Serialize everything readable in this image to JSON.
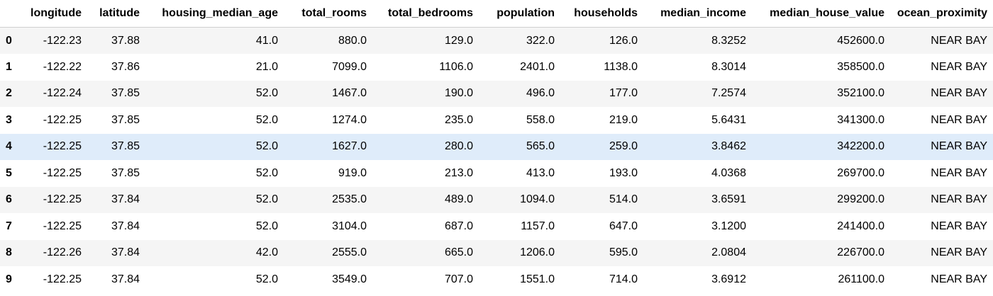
{
  "table": {
    "columns": [
      "",
      "longitude",
      "latitude",
      "housing_median_age",
      "total_rooms",
      "total_bedrooms",
      "population",
      "households",
      "median_income",
      "median_house_value",
      "ocean_proximity"
    ],
    "rows": [
      {
        "index": "0",
        "cells": [
          "-122.23",
          "37.88",
          "41.0",
          "880.0",
          "129.0",
          "322.0",
          "126.0",
          "8.3252",
          "452600.0",
          "NEAR BAY"
        ]
      },
      {
        "index": "1",
        "cells": [
          "-122.22",
          "37.86",
          "21.0",
          "7099.0",
          "1106.0",
          "2401.0",
          "1138.0",
          "8.3014",
          "358500.0",
          "NEAR BAY"
        ]
      },
      {
        "index": "2",
        "cells": [
          "-122.24",
          "37.85",
          "52.0",
          "1467.0",
          "190.0",
          "496.0",
          "177.0",
          "7.2574",
          "352100.0",
          "NEAR BAY"
        ]
      },
      {
        "index": "3",
        "cells": [
          "-122.25",
          "37.85",
          "52.0",
          "1274.0",
          "235.0",
          "558.0",
          "219.0",
          "5.6431",
          "341300.0",
          "NEAR BAY"
        ]
      },
      {
        "index": "4",
        "cells": [
          "-122.25",
          "37.85",
          "52.0",
          "1627.0",
          "280.0",
          "565.0",
          "259.0",
          "3.8462",
          "342200.0",
          "NEAR BAY"
        ]
      },
      {
        "index": "5",
        "cells": [
          "-122.25",
          "37.85",
          "52.0",
          "919.0",
          "213.0",
          "413.0",
          "193.0",
          "4.0368",
          "269700.0",
          "NEAR BAY"
        ]
      },
      {
        "index": "6",
        "cells": [
          "-122.25",
          "37.84",
          "52.0",
          "2535.0",
          "489.0",
          "1094.0",
          "514.0",
          "3.6591",
          "299200.0",
          "NEAR BAY"
        ]
      },
      {
        "index": "7",
        "cells": [
          "-122.25",
          "37.84",
          "52.0",
          "3104.0",
          "687.0",
          "1157.0",
          "647.0",
          "3.1200",
          "241400.0",
          "NEAR BAY"
        ]
      },
      {
        "index": "8",
        "cells": [
          "-122.26",
          "37.84",
          "42.0",
          "2555.0",
          "665.0",
          "1206.0",
          "595.0",
          "2.0804",
          "226700.0",
          "NEAR BAY"
        ]
      },
      {
        "index": "9",
        "cells": [
          "-122.25",
          "37.84",
          "52.0",
          "3549.0",
          "707.0",
          "1551.0",
          "714.0",
          "3.6912",
          "261100.0",
          "NEAR BAY"
        ]
      }
    ]
  },
  "colors": {
    "header_border": "#cfcfcf",
    "striped_row": "#f5f5f5",
    "hovered_row": "#dfecfa"
  }
}
